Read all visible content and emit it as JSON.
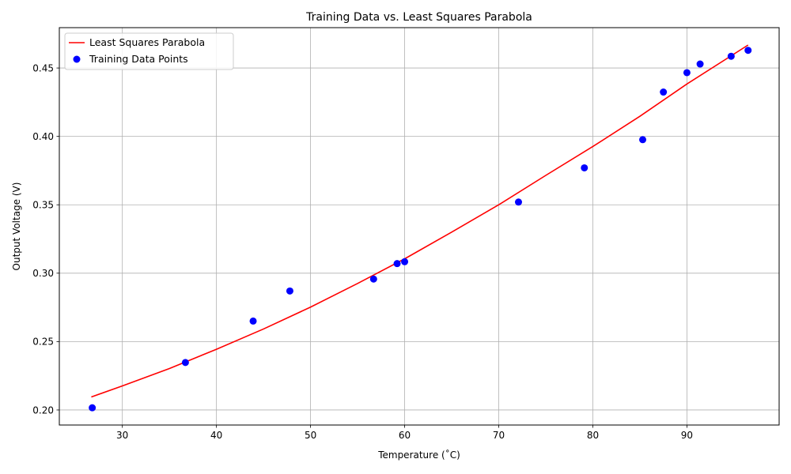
{
  "chart_data": {
    "type": "scatter",
    "title": "Training Data vs. Least Squares Parabola",
    "xlabel": "Temperature (˚C)",
    "ylabel": "Output Voltage (V)",
    "xlim": [
      23.3,
      99.8
    ],
    "ylim": [
      0.189,
      0.4795
    ],
    "xticks": [
      30,
      40,
      50,
      60,
      70,
      80,
      90
    ],
    "yticks": [
      0.2,
      0.25,
      0.3,
      0.35,
      0.4,
      0.45
    ],
    "xtick_labels": [
      "30",
      "40",
      "50",
      "60",
      "70",
      "80",
      "90"
    ],
    "ytick_labels": [
      "0.20",
      "0.25",
      "0.30",
      "0.35",
      "0.40",
      "0.45"
    ],
    "grid": true,
    "legend_position": "top-left",
    "series": [
      {
        "name": "Least Squares Parabola",
        "kind": "line",
        "color": "#ff0000",
        "x": [
          26.7,
          30,
          35,
          40,
          45,
          50,
          55,
          60,
          65,
          70,
          75,
          80,
          85,
          90,
          96.5
        ],
        "y": [
          0.2095,
          0.2176,
          0.2303,
          0.2444,
          0.2592,
          0.2752,
          0.2925,
          0.3105,
          0.33,
          0.35,
          0.3715,
          0.3926,
          0.4147,
          0.4383,
          0.4668
        ]
      },
      {
        "name": "Training Data Points",
        "kind": "points",
        "color": "#0000ff",
        "x": [
          26.8,
          36.7,
          43.9,
          47.8,
          56.7,
          59.2,
          60.0,
          72.1,
          79.1,
          85.3,
          87.5,
          90.0,
          91.4,
          94.7,
          96.5
        ],
        "y": [
          0.2016,
          0.2347,
          0.265,
          0.287,
          0.2957,
          0.307,
          0.3084,
          0.352,
          0.377,
          0.3976,
          0.4324,
          0.4466,
          0.4529,
          0.4586,
          0.4629
        ]
      }
    ]
  }
}
